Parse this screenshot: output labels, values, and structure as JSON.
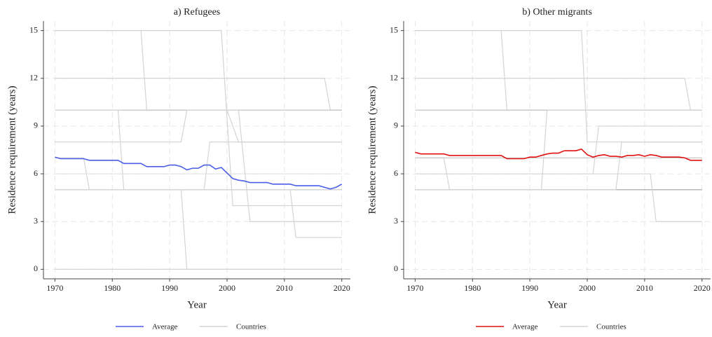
{
  "chart_data": [
    {
      "type": "line",
      "title": "a) Refugees",
      "xlabel": "Year",
      "ylabel": "Residence requirement (years)",
      "xlim": [
        1968,
        2021.5
      ],
      "ylim": [
        -0.6,
        15.6
      ],
      "xticks": [
        1970,
        1980,
        1990,
        2000,
        2010,
        2020
      ],
      "yticks": [
        0,
        3,
        6,
        9,
        12,
        15
      ],
      "grid": true,
      "legend": "bottom",
      "x": [
        1970,
        1971,
        1972,
        1973,
        1974,
        1975,
        1976,
        1977,
        1978,
        1979,
        1980,
        1981,
        1982,
        1983,
        1984,
        1985,
        1986,
        1987,
        1988,
        1989,
        1990,
        1991,
        1992,
        1993,
        1994,
        1995,
        1996,
        1997,
        1998,
        1999,
        2000,
        2001,
        2002,
        2003,
        2004,
        2005,
        2006,
        2007,
        2008,
        2009,
        2010,
        2011,
        2012,
        2013,
        2014,
        2015,
        2016,
        2017,
        2018,
        2019,
        2020
      ],
      "series": [
        {
          "name": "Average",
          "color": "#4a5ee8",
          "values": [
            7.05,
            6.95,
            6.95,
            6.95,
            6.95,
            6.95,
            6.85,
            6.85,
            6.85,
            6.85,
            6.85,
            6.85,
            6.65,
            6.65,
            6.65,
            6.65,
            6.45,
            6.45,
            6.45,
            6.45,
            6.55,
            6.55,
            6.45,
            6.25,
            6.35,
            6.35,
            6.55,
            6.55,
            6.3,
            6.4,
            6.05,
            5.7,
            5.6,
            5.55,
            5.45,
            5.45,
            5.45,
            5.45,
            5.35,
            5.35,
            5.35,
            5.35,
            5.25,
            5.25,
            5.25,
            5.25,
            5.25,
            5.15,
            5.05,
            5.15,
            5.35
          ]
        },
        {
          "name": "Countries",
          "color": "#d4d4d4",
          "x": [
            1970,
            1985,
            1986,
            2000,
            2002,
            2020
          ],
          "values": [
            15,
            15,
            10,
            10,
            8,
            8
          ]
        },
        {
          "name": "Countries",
          "color": "#d4d4d4",
          "x": [
            1970,
            1999,
            2001,
            2020
          ],
          "values": [
            15,
            15,
            4,
            4
          ]
        },
        {
          "name": "Countries",
          "color": "#d4d4d4",
          "x": [
            1970,
            2017,
            2018,
            2020
          ],
          "values": [
            12,
            12,
            10,
            10
          ]
        },
        {
          "name": "Countries",
          "color": "#bdbdbd",
          "x": [
            1970,
            2020
          ],
          "values": [
            10,
            10
          ]
        },
        {
          "name": "Countries",
          "color": "#d4d4d4",
          "x": [
            1970,
            1992,
            1993,
            2002,
            2004,
            2020
          ],
          "values": [
            8,
            8,
            10,
            10,
            3,
            3
          ]
        },
        {
          "name": "Countries",
          "color": "#a8a8a8",
          "x": [
            1970,
            2020
          ],
          "values": [
            5,
            5
          ]
        },
        {
          "name": "Countries",
          "color": "#d4d4d4",
          "x": [
            1970,
            1975,
            1976,
            2020
          ],
          "values": [
            7,
            7,
            5,
            5
          ]
        },
        {
          "name": "Countries",
          "color": "#d4d4d4",
          "x": [
            1970,
            1981,
            1982,
            2020
          ],
          "values": [
            10,
            10,
            5,
            5
          ]
        },
        {
          "name": "Countries",
          "color": "#d4d4d4",
          "x": [
            1970,
            2020
          ],
          "values": [
            0,
            0
          ]
        },
        {
          "name": "Countries",
          "color": "#d4d4d4",
          "x": [
            1970,
            1992,
            1993,
            2020
          ],
          "values": [
            5,
            5,
            0,
            0
          ]
        },
        {
          "name": "Countries",
          "color": "#d4d4d4",
          "x": [
            1970,
            1996,
            1997,
            2020
          ],
          "values": [
            5,
            5,
            8,
            8
          ]
        },
        {
          "name": "Countries",
          "color": "#d4d4d4",
          "x": [
            1970,
            2011,
            2012,
            2020
          ],
          "values": [
            5,
            5,
            2,
            2
          ]
        },
        {
          "name": "Countries",
          "color": "#e0e0e0",
          "x": [
            1970,
            2020
          ],
          "values": [
            6,
            6
          ]
        }
      ]
    },
    {
      "type": "line",
      "title": "b) Other migrants",
      "xlabel": "Year",
      "ylabel": "Residence requirement (years)",
      "xlim": [
        1968,
        2021.5
      ],
      "ylim": [
        -0.6,
        15.6
      ],
      "xticks": [
        1970,
        1980,
        1990,
        2000,
        2010,
        2020
      ],
      "yticks": [
        0,
        3,
        6,
        9,
        12,
        15
      ],
      "grid": true,
      "legend": "bottom",
      "x": [
        1970,
        1971,
        1972,
        1973,
        1974,
        1975,
        1976,
        1977,
        1978,
        1979,
        1980,
        1981,
        1982,
        1983,
        1984,
        1985,
        1986,
        1987,
        1988,
        1989,
        1990,
        1991,
        1992,
        1993,
        1994,
        1995,
        1996,
        1997,
        1998,
        1999,
        2000,
        2001,
        2002,
        2003,
        2004,
        2005,
        2006,
        2007,
        2008,
        2009,
        2010,
        2011,
        2012,
        2013,
        2014,
        2015,
        2016,
        2017,
        2018,
        2019,
        2020
      ],
      "series": [
        {
          "name": "Average",
          "color": "#e01010",
          "values": [
            7.35,
            7.25,
            7.25,
            7.25,
            7.25,
            7.25,
            7.15,
            7.15,
            7.15,
            7.15,
            7.15,
            7.15,
            7.15,
            7.15,
            7.15,
            7.15,
            6.95,
            6.95,
            6.95,
            6.95,
            7.05,
            7.05,
            7.15,
            7.25,
            7.3,
            7.3,
            7.45,
            7.45,
            7.45,
            7.55,
            7.2,
            7.05,
            7.15,
            7.2,
            7.1,
            7.1,
            7.05,
            7.15,
            7.15,
            7.2,
            7.1,
            7.2,
            7.15,
            7.05,
            7.05,
            7.05,
            7.05,
            7.0,
            6.85,
            6.85,
            6.85
          ]
        },
        {
          "name": "Countries",
          "color": "#d4d4d4",
          "x": [
            1970,
            1985,
            1986,
            2020
          ],
          "values": [
            15,
            15,
            10,
            10
          ]
        },
        {
          "name": "Countries",
          "color": "#d4d4d4",
          "x": [
            1970,
            1999,
            2000,
            2020
          ],
          "values": [
            15,
            15,
            8,
            8
          ]
        },
        {
          "name": "Countries",
          "color": "#d4d4d4",
          "x": [
            1970,
            2017,
            2018,
            2020
          ],
          "values": [
            12,
            12,
            10,
            10
          ]
        },
        {
          "name": "Countries",
          "color": "#bdbdbd",
          "x": [
            1970,
            2020
          ],
          "values": [
            10,
            10
          ]
        },
        {
          "name": "Countries",
          "color": "#d4d4d4",
          "x": [
            1970,
            1975,
            1976,
            2020
          ],
          "values": [
            7,
            7,
            5,
            5
          ]
        },
        {
          "name": "Countries",
          "color": "#c8c8c8",
          "x": [
            1970,
            2020
          ],
          "values": [
            7,
            7
          ]
        },
        {
          "name": "Countries",
          "color": "#a8a8a8",
          "x": [
            1970,
            2020
          ],
          "values": [
            5,
            5
          ]
        },
        {
          "name": "Countries",
          "color": "#d4d4d4",
          "x": [
            1970,
            2011,
            2012,
            2020
          ],
          "values": [
            6,
            6,
            3,
            3
          ]
        },
        {
          "name": "Countries",
          "color": "#d4d4d4",
          "x": [
            1970,
            1992,
            1993,
            2020
          ],
          "values": [
            5,
            5,
            10,
            10
          ]
        },
        {
          "name": "Countries",
          "color": "#d4d4d4",
          "x": [
            1970,
            2001,
            2002,
            2020
          ],
          "values": [
            6,
            6,
            9,
            9
          ]
        },
        {
          "name": "Countries",
          "color": "#d4d4d4",
          "x": [
            1970,
            2005,
            2006,
            2020
          ],
          "values": [
            5,
            5,
            8,
            8
          ]
        }
      ]
    }
  ]
}
